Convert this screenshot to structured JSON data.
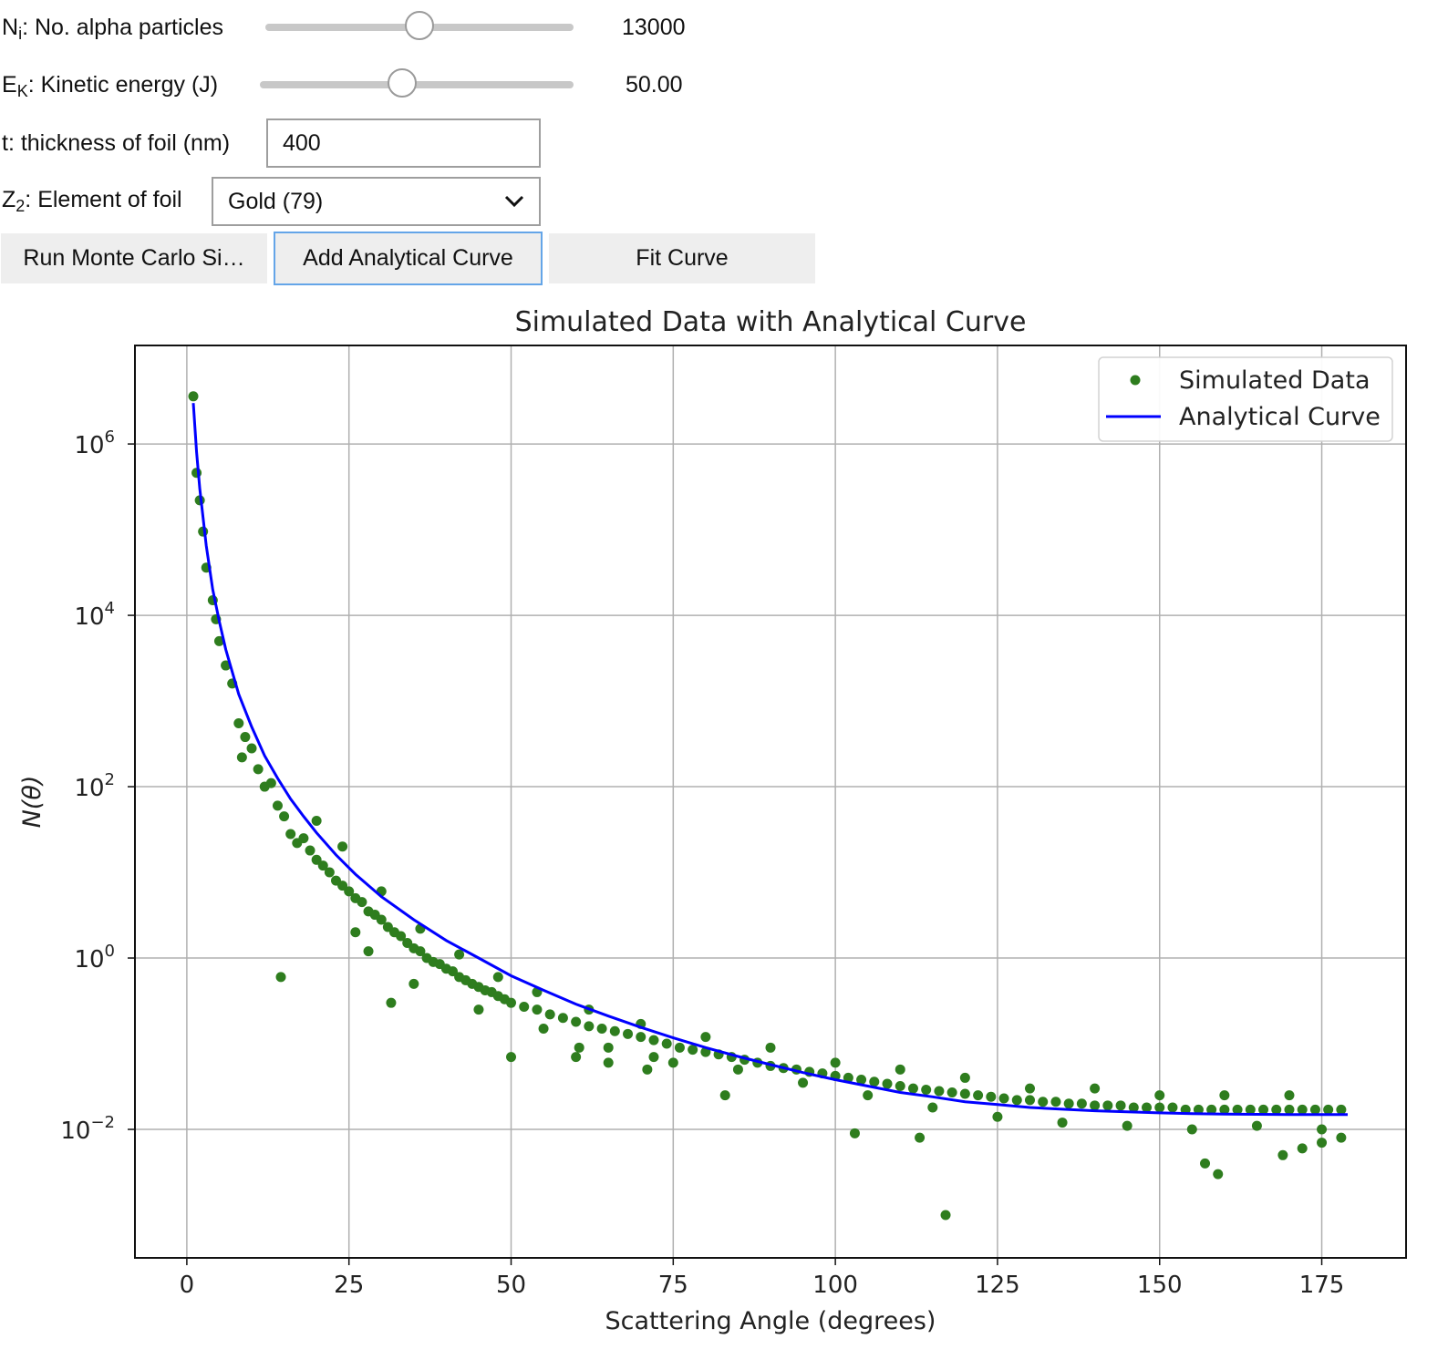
{
  "controls": {
    "particles": {
      "label_main": "N",
      "label_sub": "i",
      "label_rest": ": No. alpha particles",
      "value": "13000",
      "slider_fraction": 0.5
    },
    "energy": {
      "label_main": "E",
      "label_sub": "K",
      "label_rest": ": Kinetic energy (J)",
      "value": "50.00",
      "slider_fraction": 0.45
    },
    "thickness": {
      "label": "t: thickness of foil (nm)",
      "value": "400"
    },
    "element": {
      "label_main": "Z",
      "label_sub": "2",
      "label_rest": ": Element of foil",
      "selected": "Gold (79)",
      "icon": "chevron-down-icon"
    }
  },
  "buttons": {
    "run": "Run Monte Carlo Si…",
    "add": "Add Analytical Curve",
    "fit": "Fit Curve"
  },
  "colors": {
    "scatter": "#2e7d1e",
    "curve": "#0000ff",
    "focus": "#64a5e8"
  },
  "chart_data": {
    "type": "scatter",
    "title": "Simulated Data with Analytical Curve",
    "xlabel": "Scattering Angle (degrees)",
    "ylabel": "N(θ)",
    "xlim": [
      -8,
      188
    ],
    "ylim_log10": [
      -3.5,
      7.15
    ],
    "y_scale": "log",
    "grid": true,
    "legend_position": "top-right",
    "x_ticks": [
      0,
      25,
      50,
      75,
      100,
      125,
      150,
      175
    ],
    "y_ticks": [
      {
        "base": "10",
        "exp": "6",
        "log10": 6
      },
      {
        "base": "10",
        "exp": "4",
        "log10": 4
      },
      {
        "base": "10",
        "exp": "2",
        "log10": 2
      },
      {
        "base": "10",
        "exp": "0",
        "log10": 0
      },
      {
        "base": "10",
        "exp": "−2",
        "log10": -2
      }
    ],
    "series": [
      {
        "name": "Simulated Data",
        "kind": "points"
      },
      {
        "name": "Analytical Curve",
        "kind": "line"
      }
    ],
    "scatter_points": [
      [
        1,
        3600000
      ],
      [
        1.5,
        460000
      ],
      [
        2,
        220000
      ],
      [
        2.5,
        95000
      ],
      [
        3,
        36000
      ],
      [
        4,
        15000
      ],
      [
        4.5,
        9000
      ],
      [
        5,
        5000
      ],
      [
        6,
        2600
      ],
      [
        7,
        1600
      ],
      [
        8,
        550
      ],
      [
        8.5,
        220
      ],
      [
        9,
        380
      ],
      [
        10,
        280
      ],
      [
        11,
        160
      ],
      [
        12,
        100
      ],
      [
        13,
        110
      ],
      [
        14,
        60
      ],
      [
        15,
        45
      ],
      [
        16,
        28
      ],
      [
        17,
        22
      ],
      [
        18,
        25
      ],
      [
        19,
        18
      ],
      [
        20,
        14
      ],
      [
        21,
        12
      ],
      [
        22,
        10
      ],
      [
        23,
        8
      ],
      [
        24,
        7
      ],
      [
        25,
        6
      ],
      [
        26,
        5
      ],
      [
        27,
        4.5
      ],
      [
        28,
        3.5
      ],
      [
        29,
        3.2
      ],
      [
        30,
        2.8
      ],
      [
        31,
        2.3
      ],
      [
        32,
        2
      ],
      [
        33,
        1.8
      ],
      [
        34,
        1.5
      ],
      [
        35,
        1.3
      ],
      [
        36,
        1.2
      ],
      [
        37,
        1
      ],
      [
        38,
        0.9
      ],
      [
        39,
        0.85
      ],
      [
        40,
        0.75
      ],
      [
        41,
        0.7
      ],
      [
        42,
        0.6
      ],
      [
        43,
        0.55
      ],
      [
        44,
        0.5
      ],
      [
        45,
        0.46
      ],
      [
        46,
        0.42
      ],
      [
        47,
        0.4
      ],
      [
        48,
        0.36
      ],
      [
        49,
        0.33
      ],
      [
        50,
        0.3
      ],
      [
        52,
        0.27
      ],
      [
        54,
        0.25
      ],
      [
        56,
        0.22
      ],
      [
        58,
        0.2
      ],
      [
        60,
        0.18
      ],
      [
        62,
        0.16
      ],
      [
        64,
        0.15
      ],
      [
        66,
        0.14
      ],
      [
        68,
        0.13
      ],
      [
        70,
        0.12
      ],
      [
        72,
        0.11
      ],
      [
        74,
        0.1
      ],
      [
        76,
        0.09
      ],
      [
        78,
        0.085
      ],
      [
        80,
        0.08
      ],
      [
        82,
        0.075
      ],
      [
        84,
        0.07
      ],
      [
        86,
        0.065
      ],
      [
        88,
        0.06
      ],
      [
        90,
        0.055
      ],
      [
        92,
        0.052
      ],
      [
        94,
        0.05
      ],
      [
        96,
        0.047
      ],
      [
        98,
        0.045
      ],
      [
        100,
        0.042
      ],
      [
        102,
        0.04
      ],
      [
        104,
        0.038
      ],
      [
        106,
        0.036
      ],
      [
        108,
        0.034
      ],
      [
        110,
        0.032
      ],
      [
        112,
        0.03
      ],
      [
        114,
        0.029
      ],
      [
        116,
        0.028
      ],
      [
        118,
        0.027
      ],
      [
        120,
        0.026
      ],
      [
        122,
        0.025
      ],
      [
        124,
        0.024
      ],
      [
        126,
        0.023
      ],
      [
        128,
        0.022
      ],
      [
        130,
        0.022
      ],
      [
        132,
        0.021
      ],
      [
        134,
        0.021
      ],
      [
        136,
        0.02
      ],
      [
        138,
        0.02
      ],
      [
        140,
        0.019
      ],
      [
        142,
        0.019
      ],
      [
        144,
        0.019
      ],
      [
        146,
        0.018
      ],
      [
        148,
        0.018
      ],
      [
        150,
        0.018
      ],
      [
        152,
        0.018
      ],
      [
        154,
        0.017
      ],
      [
        156,
        0.017
      ],
      [
        158,
        0.017
      ],
      [
        160,
        0.017
      ],
      [
        162,
        0.017
      ],
      [
        164,
        0.017
      ],
      [
        166,
        0.017
      ],
      [
        168,
        0.017
      ],
      [
        170,
        0.017
      ],
      [
        172,
        0.017
      ],
      [
        174,
        0.017
      ],
      [
        176,
        0.017
      ],
      [
        178,
        0.017
      ],
      [
        14.5,
        0.6
      ],
      [
        31.5,
        0.3
      ],
      [
        117,
        0.001
      ],
      [
        103,
        0.009
      ],
      [
        113,
        0.008
      ],
      [
        83,
        0.025
      ],
      [
        50,
        0.07
      ],
      [
        60,
        0.07
      ],
      [
        65,
        0.06
      ],
      [
        71,
        0.05
      ],
      [
        157,
        0.004
      ],
      [
        159,
        0.003
      ],
      [
        169,
        0.005
      ],
      [
        172,
        0.006
      ],
      [
        175,
        0.007
      ],
      [
        178,
        0.008
      ],
      [
        60.5,
        0.09
      ],
      [
        72,
        0.07
      ],
      [
        26,
        2
      ],
      [
        28,
        1.2
      ],
      [
        35,
        0.5
      ],
      [
        45,
        0.25
      ],
      [
        55,
        0.15
      ],
      [
        65,
        0.09
      ],
      [
        75,
        0.06
      ],
      [
        85,
        0.05
      ],
      [
        95,
        0.035
      ],
      [
        105,
        0.025
      ],
      [
        115,
        0.018
      ],
      [
        125,
        0.014
      ],
      [
        135,
        0.012
      ],
      [
        145,
        0.011
      ],
      [
        155,
        0.01
      ],
      [
        165,
        0.011
      ],
      [
        175,
        0.01
      ],
      [
        20,
        40
      ],
      [
        24,
        20
      ],
      [
        30,
        6
      ],
      [
        36,
        2.2
      ],
      [
        42,
        1.1
      ],
      [
        48,
        0.6
      ],
      [
        54,
        0.4
      ],
      [
        62,
        0.25
      ],
      [
        70,
        0.17
      ],
      [
        80,
        0.12
      ],
      [
        90,
        0.09
      ],
      [
        100,
        0.06
      ],
      [
        110,
        0.05
      ],
      [
        120,
        0.04
      ],
      [
        130,
        0.03
      ],
      [
        140,
        0.03
      ],
      [
        150,
        0.025
      ],
      [
        160,
        0.025
      ],
      [
        170,
        0.025
      ]
    ],
    "curve_points": [
      [
        1,
        3000000
      ],
      [
        1.5,
        800000
      ],
      [
        2,
        300000
      ],
      [
        3,
        65000
      ],
      [
        4,
        20000
      ],
      [
        5,
        8500
      ],
      [
        6,
        4000
      ],
      [
        8,
        1200
      ],
      [
        10,
        500
      ],
      [
        12,
        230
      ],
      [
        14,
        125
      ],
      [
        16,
        72
      ],
      [
        18,
        45
      ],
      [
        20,
        29
      ],
      [
        23,
        16
      ],
      [
        26,
        9.5
      ],
      [
        30,
        5.2
      ],
      [
        35,
        2.8
      ],
      [
        40,
        1.6
      ],
      [
        45,
        1
      ],
      [
        50,
        0.62
      ],
      [
        55,
        0.42
      ],
      [
        60,
        0.29
      ],
      [
        65,
        0.21
      ],
      [
        70,
        0.155
      ],
      [
        75,
        0.117
      ],
      [
        80,
        0.09
      ],
      [
        85,
        0.071
      ],
      [
        90,
        0.057
      ],
      [
        95,
        0.046
      ],
      [
        100,
        0.038
      ],
      [
        105,
        0.032
      ],
      [
        110,
        0.027
      ],
      [
        115,
        0.024
      ],
      [
        120,
        0.021
      ],
      [
        125,
        0.0195
      ],
      [
        130,
        0.018
      ],
      [
        135,
        0.0172
      ],
      [
        140,
        0.0165
      ],
      [
        145,
        0.016
      ],
      [
        150,
        0.0156
      ],
      [
        155,
        0.0153
      ],
      [
        160,
        0.0151
      ],
      [
        165,
        0.015
      ],
      [
        170,
        0.0149
      ],
      [
        175,
        0.0149
      ],
      [
        179,
        0.0149
      ]
    ]
  }
}
